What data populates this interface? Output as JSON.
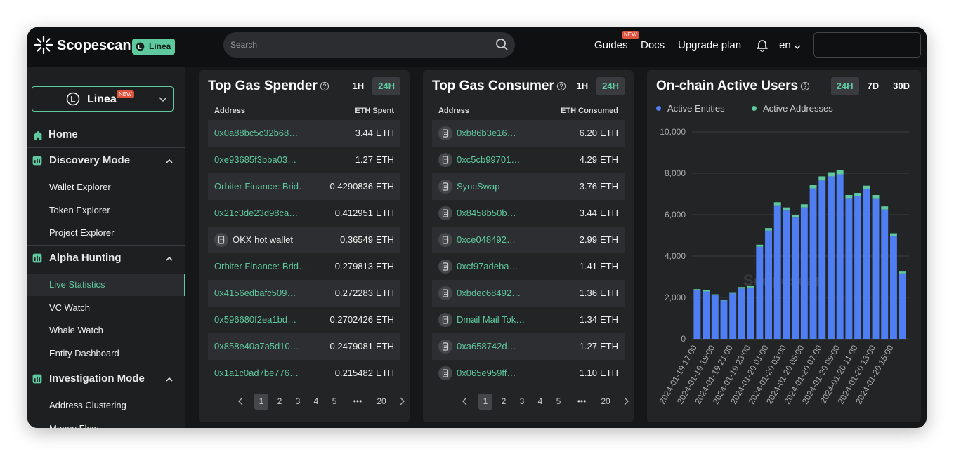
{
  "header": {
    "logo": "Scopescan",
    "chain_badge": "Linea",
    "search_placeholder": "Search",
    "nav": [
      "Guides",
      "Docs",
      "Upgrade plan"
    ],
    "nav_badge": "NEW",
    "language": "en"
  },
  "sidebar": {
    "chain": "Linea",
    "chain_badge": "NEW",
    "home": "Home",
    "sections": [
      {
        "title": "Discovery Mode",
        "items": [
          "Wallet Explorer",
          "Token Explorer",
          "Project Explorer"
        ]
      },
      {
        "title": "Alpha Hunting",
        "items": [
          "Live Statistics",
          "VC Watch",
          "Whale Watch",
          "Entity Dashboard"
        ]
      },
      {
        "title": "Investigation Mode",
        "items": [
          "Address Clustering",
          "Money Flow"
        ]
      }
    ],
    "active_section": 1,
    "active_item": 0
  },
  "panels": [
    {
      "title": "Top Gas Spender",
      "tabs": [
        "1H",
        "24H"
      ],
      "active_tab": 1,
      "columns": [
        "Address",
        "ETH Spent"
      ],
      "rows": [
        {
          "name": "0x0a88bc5c32b68…",
          "amount": "3.44",
          "unit": "ETH",
          "icon": false,
          "color": "#5ec99f"
        },
        {
          "name": "0xe93685f3bba03…",
          "amount": "1.27",
          "unit": "ETH",
          "icon": false,
          "color": "#5ec99f"
        },
        {
          "name": "Orbiter Finance: Brid…",
          "amount": "0.4290836",
          "unit": "ETH",
          "icon": false,
          "color": "#5ec99f"
        },
        {
          "name": "0x21c3de23d98ca…",
          "amount": "0.412951",
          "unit": "ETH",
          "icon": false,
          "color": "#5ec99f"
        },
        {
          "name": "OKX hot wallet",
          "amount": "0.36549",
          "unit": "ETH",
          "icon": true,
          "color": "#e6e6e6"
        },
        {
          "name": "Orbiter Finance: Brid…",
          "amount": "0.279813",
          "unit": "ETH",
          "icon": false,
          "color": "#5ec99f"
        },
        {
          "name": "0x4156edbafc509…",
          "amount": "0.272283",
          "unit": "ETH",
          "icon": false,
          "color": "#5ec99f"
        },
        {
          "name": "0x596680f2ea1bd…",
          "amount": "0.2702426",
          "unit": "ETH",
          "icon": false,
          "color": "#5ec99f"
        },
        {
          "name": "0x858e40a7a5d10…",
          "amount": "0.2479081",
          "unit": "ETH",
          "icon": false,
          "color": "#5ec99f"
        },
        {
          "name": "0x1a1c0ad7be776…",
          "amount": "0.215482",
          "unit": "ETH",
          "icon": false,
          "color": "#5ec99f"
        }
      ],
      "pages": [
        "1",
        "2",
        "3",
        "4",
        "5",
        "•••",
        "20"
      ]
    },
    {
      "title": "Top Gas Consumer",
      "tabs": [
        "1H",
        "24H"
      ],
      "active_tab": 1,
      "columns": [
        "Address",
        "ETH Consumed"
      ],
      "rows": [
        {
          "name": "0xb86b3e16…",
          "amount": "6.20",
          "unit": "ETH",
          "icon": true,
          "color": "#5ec99f"
        },
        {
          "name": "0xc5cb99701…",
          "amount": "4.29",
          "unit": "ETH",
          "icon": true,
          "color": "#5ec99f"
        },
        {
          "name": "SyncSwap",
          "amount": "3.76",
          "unit": "ETH",
          "icon": true,
          "color": "#5ec99f"
        },
        {
          "name": "0x8458b50b…",
          "amount": "3.44",
          "unit": "ETH",
          "icon": true,
          "color": "#5ec99f"
        },
        {
          "name": "0xce048492…",
          "amount": "2.99",
          "unit": "ETH",
          "icon": true,
          "color": "#5ec99f"
        },
        {
          "name": "0xcf97adeba…",
          "amount": "1.41",
          "unit": "ETH",
          "icon": true,
          "color": "#5ec99f"
        },
        {
          "name": "0xbdec68492…",
          "amount": "1.36",
          "unit": "ETH",
          "icon": true,
          "color": "#5ec99f"
        },
        {
          "name": "Dmail Mail Tok…",
          "amount": "1.34",
          "unit": "ETH",
          "icon": true,
          "color": "#5ec99f"
        },
        {
          "name": "0xa658742d…",
          "amount": "1.27",
          "unit": "ETH",
          "icon": true,
          "color": "#5ec99f"
        },
        {
          "name": "0x065e959ff…",
          "amount": "1.10",
          "unit": "ETH",
          "icon": true,
          "color": "#5ec99f"
        }
      ],
      "pages": [
        "1",
        "2",
        "3",
        "4",
        "5",
        "•••",
        "20"
      ]
    }
  ],
  "chart_data": {
    "type": "bar",
    "stacked": true,
    "title": "On-chain Active Users",
    "tabs": [
      "24H",
      "7D",
      "30D"
    ],
    "active_tab": 0,
    "watermark": "Scopescan",
    "categories": [
      "2024-01-19 17:00",
      null,
      "2024-01-19 19:00",
      null,
      "2024-01-19 21:00",
      null,
      "2024-01-19 23:00",
      null,
      "2024-01-20 01:00",
      null,
      "2024-01-20 03:00",
      null,
      "2024-01-20 05:00",
      null,
      "2024-01-20 07:00",
      null,
      "2024-01-20 09:00",
      null,
      "2024-01-20 11:00",
      null,
      "2024-01-20 13:00",
      null,
      "2024-01-20 15:00",
      null
    ],
    "series": [
      {
        "name": "Active Entities",
        "color": "#4f7ef2",
        "values": [
          2340,
          2290,
          2100,
          1850,
          2190,
          2430,
          2480,
          4450,
          5230,
          6450,
          6200,
          5860,
          6350,
          7270,
          7650,
          7850,
          7950,
          6800,
          6890,
          7230,
          6790,
          6250,
          4970,
          3160
        ]
      },
      {
        "name": "Active Addresses",
        "color": "#5ec99f",
        "values": [
          60,
          60,
          50,
          50,
          60,
          70,
          70,
          100,
          120,
          150,
          150,
          140,
          150,
          180,
          200,
          200,
          200,
          150,
          160,
          170,
          160,
          150,
          130,
          90
        ]
      }
    ],
    "ylim": [
      0,
      10000
    ],
    "yticks": [
      0,
      {
        "value": 2000,
        "label": "2,000"
      },
      {
        "value": 4000,
        "label": "4,000"
      },
      {
        "value": 6000,
        "label": "6,000"
      },
      {
        "value": 8000,
        "label": "8,000"
      },
      {
        "value": 10000,
        "label": "10,000"
      }
    ],
    "grid": true
  }
}
